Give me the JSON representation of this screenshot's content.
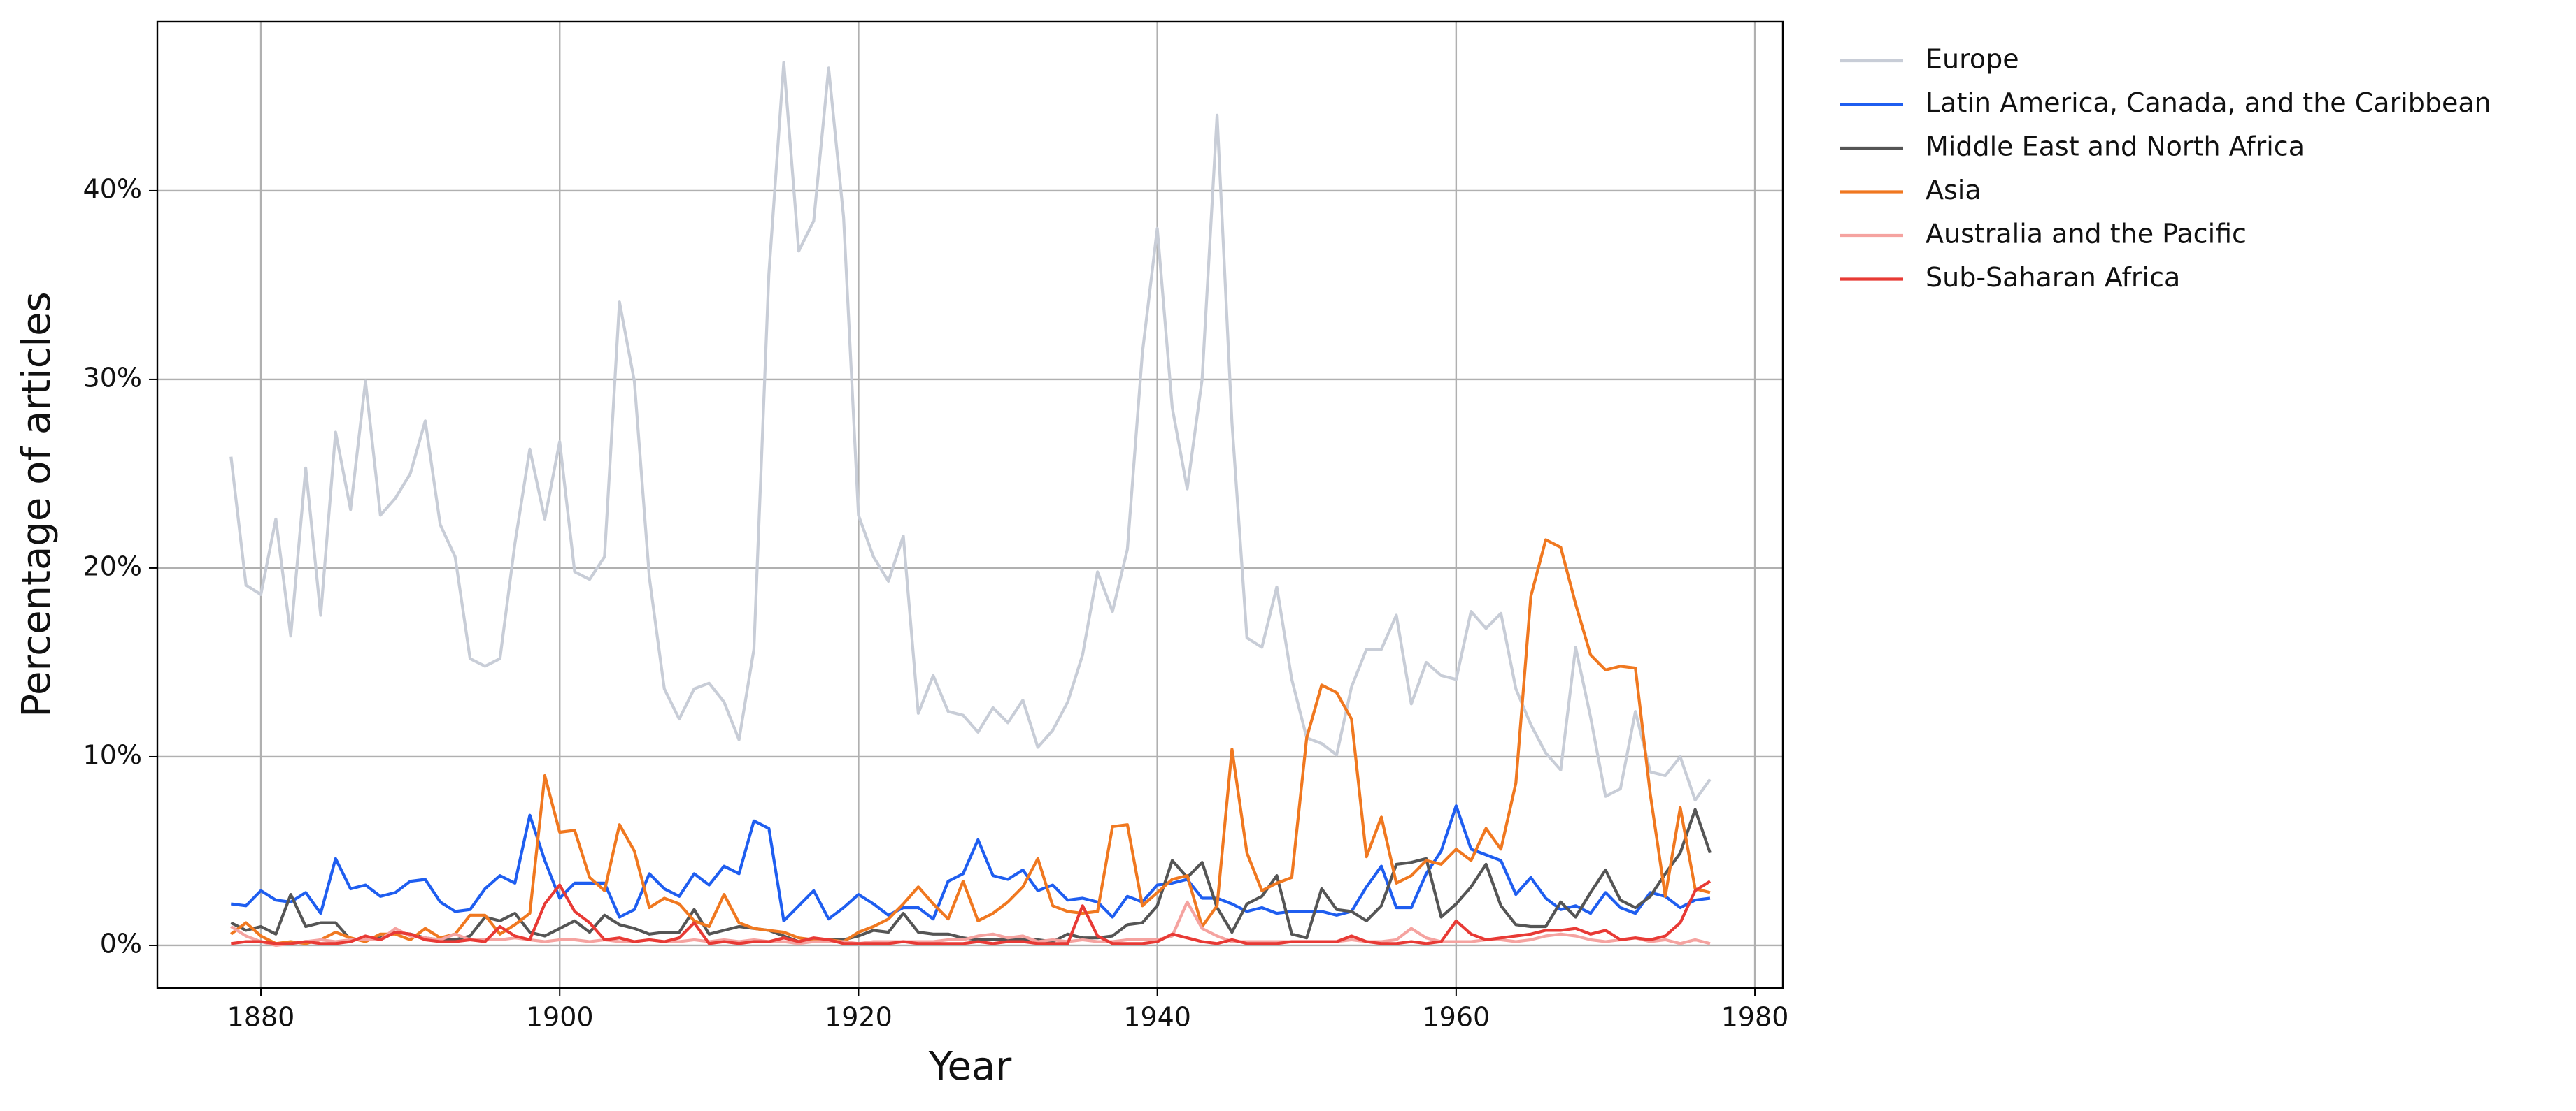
{
  "chart_data": {
    "type": "line",
    "x_label": "Year",
    "y_label": "Percentage of articles",
    "x": [
      1878,
      1879,
      1880,
      1881,
      1882,
      1883,
      1884,
      1885,
      1886,
      1887,
      1888,
      1889,
      1890,
      1891,
      1892,
      1893,
      1894,
      1895,
      1896,
      1897,
      1898,
      1899,
      1900,
      1901,
      1902,
      1903,
      1904,
      1905,
      1906,
      1907,
      1908,
      1909,
      1910,
      1911,
      1912,
      1913,
      1914,
      1915,
      1916,
      1917,
      1918,
      1919,
      1920,
      1921,
      1922,
      1923,
      1924,
      1925,
      1926,
      1927,
      1928,
      1929,
      1930,
      1931,
      1932,
      1933,
      1934,
      1935,
      1936,
      1937,
      1938,
      1939,
      1940,
      1941,
      1942,
      1943,
      1944,
      1945,
      1946,
      1947,
      1948,
      1949,
      1950,
      1951,
      1952,
      1953,
      1954,
      1955,
      1956,
      1957,
      1958,
      1959,
      1960,
      1961,
      1962,
      1963,
      1964,
      1965,
      1966,
      1967,
      1968,
      1969,
      1970,
      1971,
      1972,
      1973,
      1974,
      1975,
      1976,
      1977
    ],
    "series": [
      {
        "name": "Europe",
        "color": "#c8cdd7",
        "values": [
          25.9,
          19.1,
          18.6,
          22.6,
          16.4,
          25.3,
          17.5,
          27.2,
          23.1,
          29.9,
          22.8,
          23.7,
          25.0,
          27.8,
          22.3,
          20.6,
          15.2,
          14.8,
          15.2,
          21.3,
          26.3,
          22.6,
          26.7,
          19.8,
          19.4,
          20.6,
          34.1,
          29.9,
          19.5,
          13.6,
          12.0,
          13.6,
          13.9,
          12.9,
          10.9,
          15.7,
          35.6,
          46.8,
          36.8,
          38.4,
          46.5,
          38.6,
          22.8,
          20.6,
          19.3,
          21.7,
          12.3,
          14.3,
          12.4,
          12.2,
          11.3,
          12.6,
          11.8,
          13.0,
          10.5,
          11.4,
          12.9,
          15.4,
          19.8,
          17.7,
          21.0,
          31.4,
          38.0,
          28.5,
          24.2,
          30.0,
          44.0,
          27.7,
          16.3,
          15.8,
          19.0,
          14.1,
          11.0,
          10.7,
          10.1,
          13.7,
          15.7,
          15.7,
          17.5,
          12.8,
          15.0,
          14.3,
          14.1,
          17.7,
          16.8,
          17.6,
          13.6,
          11.7,
          10.2,
          9.3,
          15.8,
          12.1,
          7.9,
          8.3,
          12.4,
          9.2,
          9.0,
          10.0,
          7.7,
          8.8
        ]
      },
      {
        "name": "Latin America, Canada, and the Caribbean",
        "color": "#1f5ef0",
        "values": [
          2.2,
          2.1,
          2.9,
          2.4,
          2.3,
          2.8,
          1.7,
          4.6,
          3.0,
          3.2,
          2.6,
          2.8,
          3.4,
          3.5,
          2.3,
          1.8,
          1.9,
          3.0,
          3.7,
          3.3,
          6.9,
          4.5,
          2.5,
          3.3,
          3.3,
          3.3,
          1.5,
          1.9,
          3.8,
          3.0,
          2.6,
          3.8,
          3.2,
          4.2,
          3.8,
          6.6,
          6.2,
          1.3,
          2.1,
          2.9,
          1.4,
          2.0,
          2.7,
          2.2,
          1.6,
          2.0,
          2.0,
          1.4,
          3.4,
          3.8,
          5.6,
          3.7,
          3.5,
          4.0,
          2.9,
          3.2,
          2.4,
          2.5,
          2.3,
          1.5,
          2.6,
          2.3,
          3.2,
          3.3,
          3.5,
          2.5,
          2.5,
          2.2,
          1.8,
          2.0,
          1.7,
          1.8,
          1.8,
          1.8,
          1.6,
          1.8,
          3.1,
          4.2,
          2.0,
          2.0,
          3.8,
          5.0,
          7.4,
          5.1,
          4.8,
          4.5,
          2.7,
          3.6,
          2.5,
          1.9,
          2.1,
          1.7,
          2.8,
          2.0,
          1.7,
          2.8,
          2.6,
          2.0,
          2.4,
          2.5
        ]
      },
      {
        "name": "Middle East and North Africa",
        "color": "#555555",
        "values": [
          1.2,
          0.8,
          1.0,
          0.6,
          2.7,
          1.0,
          1.2,
          1.2,
          0.3,
          0.3,
          0.4,
          0.7,
          0.6,
          0.4,
          0.3,
          0.3,
          0.5,
          1.5,
          1.3,
          1.7,
          0.7,
          0.5,
          0.9,
          1.3,
          0.7,
          1.6,
          1.1,
          0.9,
          0.6,
          0.7,
          0.7,
          1.9,
          0.6,
          0.8,
          1.0,
          0.9,
          0.8,
          0.5,
          0.2,
          0.2,
          0.3,
          0.3,
          0.5,
          0.8,
          0.7,
          1.7,
          0.7,
          0.6,
          0.6,
          0.4,
          0.3,
          0.3,
          0.3,
          0.3,
          0.3,
          0.2,
          0.6,
          0.4,
          0.4,
          0.5,
          1.1,
          1.2,
          2.1,
          4.5,
          3.6,
          4.4,
          2.0,
          0.7,
          2.2,
          2.6,
          3.7,
          0.6,
          0.4,
          3.0,
          1.9,
          1.8,
          1.3,
          2.1,
          4.3,
          4.4,
          4.6,
          1.5,
          2.2,
          3.1,
          4.3,
          2.1,
          1.1,
          1.0,
          1.0,
          2.3,
          1.5,
          2.8,
          4.0,
          2.4,
          2.0,
          2.6,
          3.8,
          4.9,
          7.2,
          4.9
        ]
      },
      {
        "name": "Asia",
        "color": "#f07820",
        "values": [
          0.6,
          1.2,
          0.5,
          0.1,
          0.2,
          0.1,
          0.3,
          0.7,
          0.4,
          0.2,
          0.6,
          0.6,
          0.3,
          0.9,
          0.4,
          0.6,
          1.6,
          1.6,
          0.6,
          1.1,
          1.7,
          9.0,
          6.0,
          6.1,
          3.6,
          2.9,
          6.4,
          5.0,
          2.0,
          2.5,
          2.2,
          1.3,
          1.0,
          2.7,
          1.2,
          0.9,
          0.8,
          0.7,
          0.4,
          0.3,
          0.3,
          0.2,
          0.7,
          1.0,
          1.4,
          2.2,
          3.1,
          2.2,
          1.4,
          3.4,
          1.3,
          1.7,
          2.3,
          3.1,
          4.6,
          2.1,
          1.8,
          1.7,
          1.8,
          6.3,
          6.4,
          2.1,
          2.8,
          3.5,
          3.7,
          1.0,
          2.1,
          10.4,
          4.9,
          2.9,
          3.3,
          3.6,
          11.0,
          13.8,
          13.4,
          12.0,
          4.7,
          6.8,
          3.3,
          3.7,
          4.5,
          4.3,
          5.1,
          4.5,
          6.2,
          5.1,
          8.6,
          18.5,
          21.5,
          21.1,
          18.1,
          15.4,
          14.6,
          14.8,
          14.7,
          8.0,
          2.6,
          7.3,
          3.0,
          2.8
        ]
      },
      {
        "name": "Australia and the Pacific",
        "color": "#f5a3a0",
        "values": [
          1.0,
          0.5,
          0.2,
          0.0,
          0.1,
          0.2,
          0.3,
          0.2,
          0.3,
          0.3,
          0.3,
          0.9,
          0.5,
          0.4,
          0.3,
          0.6,
          0.3,
          0.3,
          0.3,
          0.4,
          0.3,
          0.2,
          0.3,
          0.3,
          0.2,
          0.3,
          0.2,
          0.2,
          0.3,
          0.2,
          0.2,
          0.3,
          0.2,
          0.3,
          0.2,
          0.3,
          0.2,
          0.2,
          0.1,
          0.2,
          0.2,
          0.2,
          0.1,
          0.2,
          0.2,
          0.2,
          0.2,
          0.2,
          0.3,
          0.3,
          0.5,
          0.6,
          0.4,
          0.5,
          0.2,
          0.3,
          0.2,
          0.3,
          0.2,
          0.2,
          0.3,
          0.3,
          0.3,
          0.5,
          2.3,
          0.9,
          0.5,
          0.2,
          0.2,
          0.2,
          0.2,
          0.2,
          0.2,
          0.2,
          0.2,
          0.3,
          0.2,
          0.2,
          0.3,
          0.9,
          0.4,
          0.2,
          0.2,
          0.2,
          0.3,
          0.3,
          0.2,
          0.3,
          0.5,
          0.6,
          0.5,
          0.3,
          0.2,
          0.3,
          0.4,
          0.2,
          0.3,
          0.1,
          0.3,
          0.1
        ]
      },
      {
        "name": "Sub-Saharan Africa",
        "color": "#e83a35",
        "values": [
          0.1,
          0.2,
          0.2,
          0.1,
          0.1,
          0.2,
          0.1,
          0.1,
          0.2,
          0.5,
          0.3,
          0.7,
          0.6,
          0.3,
          0.2,
          0.2,
          0.3,
          0.2,
          1.0,
          0.5,
          0.3,
          2.2,
          3.2,
          1.8,
          1.2,
          0.3,
          0.4,
          0.2,
          0.3,
          0.2,
          0.4,
          1.2,
          0.1,
          0.2,
          0.1,
          0.2,
          0.2,
          0.4,
          0.2,
          0.4,
          0.3,
          0.1,
          0.1,
          0.1,
          0.1,
          0.2,
          0.1,
          0.1,
          0.1,
          0.1,
          0.2,
          0.1,
          0.2,
          0.2,
          0.1,
          0.1,
          0.1,
          2.1,
          0.5,
          0.1,
          0.1,
          0.1,
          0.2,
          0.6,
          0.4,
          0.2,
          0.1,
          0.3,
          0.1,
          0.1,
          0.1,
          0.2,
          0.2,
          0.2,
          0.2,
          0.5,
          0.2,
          0.1,
          0.1,
          0.2,
          0.1,
          0.2,
          1.3,
          0.6,
          0.3,
          0.4,
          0.5,
          0.6,
          0.8,
          0.8,
          0.9,
          0.6,
          0.8,
          0.3,
          0.4,
          0.3,
          0.5,
          1.2,
          2.9,
          3.4
        ]
      }
    ],
    "xlim": [
      1873.07,
      1981.87
    ],
    "xticks": [
      1880,
      1900,
      1920,
      1940,
      1960,
      1980
    ],
    "ylim": [
      -2.26,
      48.96
    ],
    "yticks": [
      {
        "value": 0,
        "label": "0%"
      },
      {
        "value": 10,
        "label": "10%"
      },
      {
        "value": 20,
        "label": "20%"
      },
      {
        "value": 30,
        "label": "30%"
      },
      {
        "value": 40,
        "label": "40%"
      }
    ],
    "grid": true,
    "legend": "outside-right"
  }
}
